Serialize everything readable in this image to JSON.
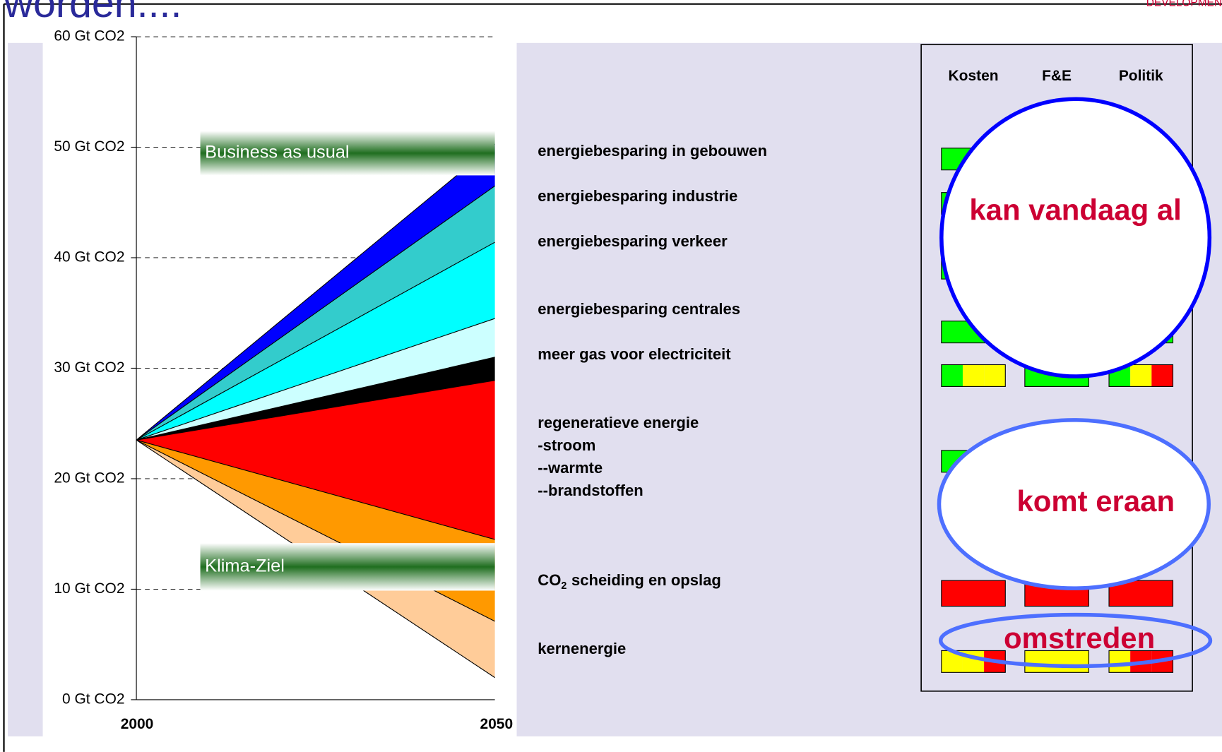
{
  "page": {
    "title": "worden....",
    "brand": "DEVELOPMEN"
  },
  "chart_data": {
    "type": "wedge",
    "x": [
      2000,
      2050
    ],
    "xlim": [
      2000,
      2050
    ],
    "xticks": [
      2000,
      2050
    ],
    "ylim": [
      0,
      60
    ],
    "yticks": [
      {
        "value": 0,
        "label": "0 Gt CO2"
      },
      {
        "value": 10,
        "label": "10 Gt CO2"
      },
      {
        "value": 20,
        "label": "20 Gt CO2"
      },
      {
        "value": 30,
        "label": "30 Gt CO2"
      },
      {
        "value": 40,
        "label": "40 Gt CO2"
      },
      {
        "value": 50,
        "label": "50 Gt CO2"
      },
      {
        "value": 60,
        "label": "60 Gt CO2"
      }
    ],
    "grid": true,
    "series": [
      {
        "values": [
          23.5,
          50.3
        ]
      },
      {
        "values": [
          23.5,
          46.5
        ]
      },
      {
        "values": [
          23.5,
          41.4
        ]
      },
      {
        "values": [
          23.5,
          34.5
        ]
      },
      {
        "values": [
          23.5,
          31.0
        ]
      },
      {
        "values": [
          23.5,
          28.9
        ]
      },
      {
        "values": [
          23.5,
          14.5
        ]
      },
      {
        "values": [
          23.5,
          7.1
        ]
      },
      {
        "values": [
          23.5,
          2.0
        ]
      }
    ],
    "fills": [
      "#0000ff",
      "#33cccc",
      "#00ffff",
      "#ccffff",
      "#000000",
      "#ff0000",
      "#ff9900",
      "#ffcc99"
    ],
    "annotations": [
      "Business as usual",
      "Klima-Ziel"
    ]
  },
  "table": {
    "columns": [
      "Kosten",
      "F&E",
      "Politik"
    ],
    "rows": [
      {
        "lines": [
          "energiebesparing in gebouwen"
        ],
        "cells": [
          [
            "#00ff00"
          ],
          [
            "#00ff00"
          ],
          [
            "#00ff00"
          ]
        ]
      },
      {
        "lines": [
          "energiebesparing industrie"
        ],
        "cells": [
          [
            "#00ff00"
          ],
          [
            "#00ff00"
          ],
          [
            "#00ff00"
          ]
        ]
      },
      {
        "lines": [
          "energiebesparing verkeer"
        ],
        "cells": [
          [
            "#00ff00"
          ],
          [
            "#00ff00"
          ],
          [
            "#00ff00"
          ]
        ]
      },
      {
        "lines": [
          "energiebesparing centrales"
        ],
        "cells": [
          [
            "#00ff00"
          ],
          [
            "#00ff00"
          ],
          [
            "#00ff00"
          ]
        ]
      },
      {
        "lines": [
          "meer gas voor electriciteit"
        ],
        "cells": [
          [
            "#00ff00",
            "#ffff00",
            "#ffff00"
          ],
          [
            "#00ff00"
          ],
          [
            "#00ff00",
            "#ffff00",
            "#ff0000"
          ]
        ]
      },
      {
        "lines": [
          "regeneratieve energie",
          "-stroom",
          "--warmte",
          "--brandstoffen"
        ],
        "cells": [
          [
            "#00ff00"
          ],
          [
            "#00ff00"
          ],
          [
            "#00ff00"
          ]
        ]
      },
      {
        "parts": [
          "CO",
          "2",
          "scheiding en opslag"
        ],
        "cells": [
          [
            "#ff0000"
          ],
          [
            "#ff0000"
          ],
          [
            "#ff0000"
          ]
        ]
      },
      {
        "lines": [
          "kernenergie"
        ],
        "cells": [
          [
            "#ffff00",
            "#ffff00",
            "#ff0000"
          ],
          [
            "#ffff00"
          ],
          [
            "#ffff00",
            "#ff0000",
            "#ff0000"
          ]
        ]
      }
    ],
    "callouts": [
      "kan vandaag al",
      "komt eraan",
      "omstreden"
    ]
  }
}
